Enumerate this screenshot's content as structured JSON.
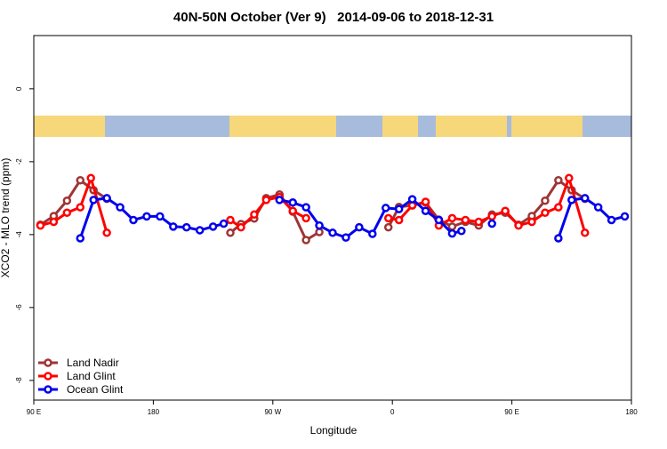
{
  "chart_data": {
    "type": "line",
    "title": "40N-50N October (Ver 9)   2014-09-06 to 2018-12-31",
    "x_label": "Longitude",
    "y_label": "XCO2 - MLO trend (ppm)",
    "xlim": [
      90,
      540
    ],
    "xticks": [
      {
        "value": 90,
        "label": "90 E"
      },
      180,
      {
        "value": 270,
        "label": "90 W"
      },
      {
        "value": 360,
        "label": "0"
      },
      {
        "value": 450,
        "label": "90 E"
      },
      {
        "value": 540,
        "label": "180"
      }
    ],
    "ylim": [
      -8.54,
      1.46
    ],
    "yticks": [
      0,
      -2,
      -4,
      -6,
      -8
    ],
    "legend": "bottom-left",
    "series": [
      {
        "name": "Land Nadir",
        "color": "#9e3535",
        "x": [
          95,
          105,
          115,
          125,
          135,
          145,
          200,
          238,
          246,
          256,
          265,
          275,
          285,
          295,
          305,
          340,
          357,
          365,
          375,
          385,
          395,
          405,
          415,
          425,
          435,
          445,
          455,
          465,
          475,
          485,
          495,
          505
        ],
        "values": [
          -3.73,
          -3.49,
          -3.07,
          -2.51,
          -2.78,
          -3.02,
          null,
          -3.95,
          -3.71,
          -3.56,
          -3.0,
          -2.9,
          -3.37,
          -4.15,
          -3.93,
          null,
          -3.8,
          -3.24,
          -3.2,
          -3.12,
          -3.59,
          -3.78,
          -3.65,
          -3.75,
          -3.45,
          -3.4,
          -3.73,
          -3.49,
          -3.07,
          -2.51,
          -2.78,
          -3.02
        ]
      },
      {
        "name": "Land Glint",
        "color": "#ff0000",
        "x": [
          95,
          105,
          115,
          125,
          133,
          145,
          200,
          238,
          246,
          256,
          265,
          275,
          285,
          295,
          340,
          357,
          365,
          375,
          385,
          395,
          405,
          415,
          425,
          435,
          445,
          455,
          465,
          475,
          485,
          493,
          505
        ],
        "values": [
          -3.75,
          -3.65,
          -3.4,
          -3.25,
          -2.45,
          -3.95,
          null,
          -3.6,
          -3.8,
          -3.45,
          -3.05,
          -2.97,
          -3.35,
          -3.55,
          null,
          -3.55,
          -3.6,
          -3.2,
          -3.1,
          -3.75,
          -3.55,
          -3.6,
          -3.65,
          -3.5,
          -3.35,
          -3.75,
          -3.65,
          -3.4,
          -3.25,
          -2.45,
          -3.95
        ]
      },
      {
        "name": "Ocean Glint",
        "color": "#0000ee",
        "x": [
          125,
          135,
          145,
          155,
          165,
          175,
          185,
          195,
          205,
          215,
          225,
          233,
          250,
          275,
          285,
          295,
          305,
          315,
          325,
          335,
          345,
          355,
          365,
          375,
          385,
          395,
          405,
          412,
          425,
          435,
          445,
          485,
          495,
          505,
          515,
          525,
          535
        ],
        "values": [
          -4.1,
          -3.05,
          -3.0,
          -3.25,
          -3.6,
          -3.5,
          -3.5,
          -3.78,
          -3.8,
          -3.88,
          -3.78,
          -3.7,
          null,
          -3.05,
          -3.12,
          -3.25,
          -3.75,
          -3.95,
          -4.08,
          -3.8,
          -3.98,
          -3.27,
          -3.3,
          -3.03,
          -3.35,
          -3.6,
          -3.97,
          -3.9,
          null,
          -3.7,
          null,
          -4.1,
          -3.05,
          -3.0,
          -3.25,
          -3.6,
          -3.5
        ]
      }
    ]
  }
}
